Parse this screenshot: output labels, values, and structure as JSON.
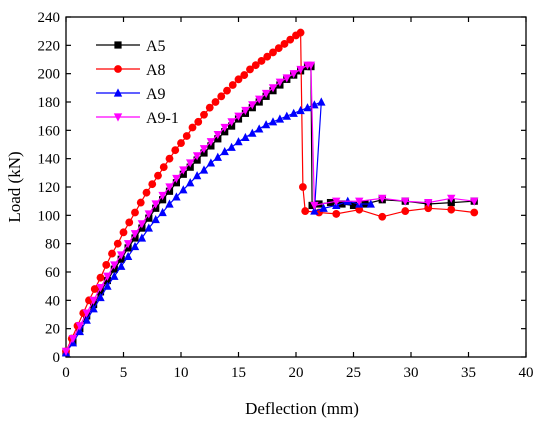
{
  "chart_data": {
    "type": "line",
    "xlabel": "Deflection (mm)",
    "ylabel": "Load (kN)",
    "xlim": [
      0,
      40
    ],
    "ylim": [
      0,
      240
    ],
    "xticks": [
      0,
      5,
      10,
      15,
      20,
      25,
      30,
      35,
      40
    ],
    "yticks": [
      0,
      20,
      40,
      60,
      80,
      100,
      120,
      140,
      160,
      180,
      200,
      220,
      240
    ],
    "grid": false,
    "legend_position": "top-left",
    "series": [
      {
        "name": "A5",
        "color": "#000000",
        "marker": "square",
        "x": [
          0,
          0.6,
          1.2,
          1.8,
          2.4,
          3,
          3.6,
          4.2,
          4.8,
          5.4,
          6,
          6.6,
          7.2,
          7.8,
          8.4,
          9,
          9.6,
          10.2,
          10.8,
          11.4,
          12,
          12.6,
          13.2,
          13.8,
          14.4,
          15,
          15.6,
          16.2,
          16.8,
          17.4,
          18,
          18.6,
          19.2,
          19.8,
          20.4,
          21,
          21.3,
          21.4,
          22,
          23,
          24,
          25,
          26,
          27.5,
          29.5,
          31.5,
          33.5,
          35.5
        ],
        "y": [
          3,
          11,
          20,
          29,
          37,
          46,
          54,
          62,
          69,
          77,
          84,
          91,
          98,
          105,
          111,
          117,
          123,
          129,
          134,
          139,
          144,
          149,
          154,
          159,
          163,
          168,
          172,
          176,
          180,
          184,
          188,
          192,
          196,
          199,
          202,
          205,
          205,
          107,
          108,
          109,
          108,
          107,
          108,
          111,
          110,
          108,
          109,
          110
        ]
      },
      {
        "name": "A8",
        "color": "#ff0000",
        "marker": "circle",
        "x": [
          0,
          0.5,
          1,
          1.5,
          2,
          2.5,
          3,
          3.5,
          4,
          4.5,
          5,
          5.5,
          6,
          6.5,
          7,
          7.5,
          8,
          8.5,
          9,
          9.5,
          10,
          10.5,
          11,
          11.5,
          12,
          12.5,
          13,
          13.5,
          14,
          14.5,
          15,
          15.5,
          16,
          16.5,
          17,
          17.5,
          18,
          18.5,
          19,
          19.5,
          20,
          20.4,
          20.6,
          20.8,
          22,
          23.5,
          25.5,
          27.5,
          29.5,
          31.5,
          33.5,
          35.5
        ],
        "y": [
          4,
          13,
          22,
          31,
          40,
          48,
          56,
          65,
          73,
          80,
          88,
          95,
          102,
          109,
          116,
          122,
          128,
          134,
          140,
          146,
          151,
          156,
          162,
          166,
          171,
          176,
          180,
          184,
          188,
          192,
          196,
          199,
          203,
          206,
          209,
          212,
          215,
          218,
          221,
          224,
          227,
          229,
          120,
          103,
          102,
          101,
          104,
          99,
          103,
          105,
          104,
          102
        ]
      },
      {
        "name": "A9",
        "color": "#0000ff",
        "marker": "triangle-up",
        "x": [
          0,
          0.6,
          1.2,
          1.8,
          2.4,
          3,
          3.6,
          4.2,
          4.8,
          5.4,
          6,
          6.6,
          7.2,
          7.8,
          8.4,
          9,
          9.6,
          10.2,
          10.8,
          11.4,
          12,
          12.6,
          13.2,
          13.8,
          14.4,
          15,
          15.6,
          16.2,
          16.8,
          17.4,
          18,
          18.6,
          19.2,
          19.8,
          20.4,
          21,
          21.6,
          22.2,
          21.6,
          22.4,
          23.5,
          24.5,
          25.5,
          26.5
        ],
        "y": [
          3,
          10,
          18,
          26,
          34,
          42,
          50,
          57,
          64,
          71,
          78,
          84,
          91,
          97,
          102,
          108,
          113,
          118,
          123,
          128,
          132,
          137,
          141,
          145,
          148,
          152,
          155,
          158,
          161,
          164,
          166,
          168,
          170,
          172,
          174,
          176,
          178,
          180,
          103,
          105,
          107,
          110,
          108,
          108
        ]
      },
      {
        "name": "A9-1",
        "color": "#ff00ff",
        "marker": "triangle-down",
        "x": [
          0,
          0.6,
          1.2,
          1.8,
          2.4,
          3,
          3.6,
          4.2,
          4.8,
          5.4,
          6,
          6.6,
          7.2,
          7.8,
          8.4,
          9,
          9.6,
          10.2,
          10.8,
          11.4,
          12,
          12.6,
          13.2,
          13.8,
          14.4,
          15,
          15.6,
          16.2,
          16.8,
          17.4,
          18,
          18.6,
          19.2,
          19.8,
          20.4,
          21,
          21.3,
          21.6,
          23.5,
          25.5,
          27.5,
          29.5,
          31.5,
          33.5,
          35.5
        ],
        "y": [
          4,
          13,
          22,
          31,
          40,
          49,
          57,
          65,
          72,
          80,
          87,
          94,
          101,
          108,
          114,
          120,
          126,
          132,
          137,
          142,
          147,
          152,
          157,
          162,
          166,
          170,
          174,
          178,
          182,
          186,
          190,
          194,
          197,
          200,
          203,
          206,
          206,
          107,
          110,
          110,
          112,
          110,
          109,
          112,
          110
        ]
      }
    ]
  }
}
